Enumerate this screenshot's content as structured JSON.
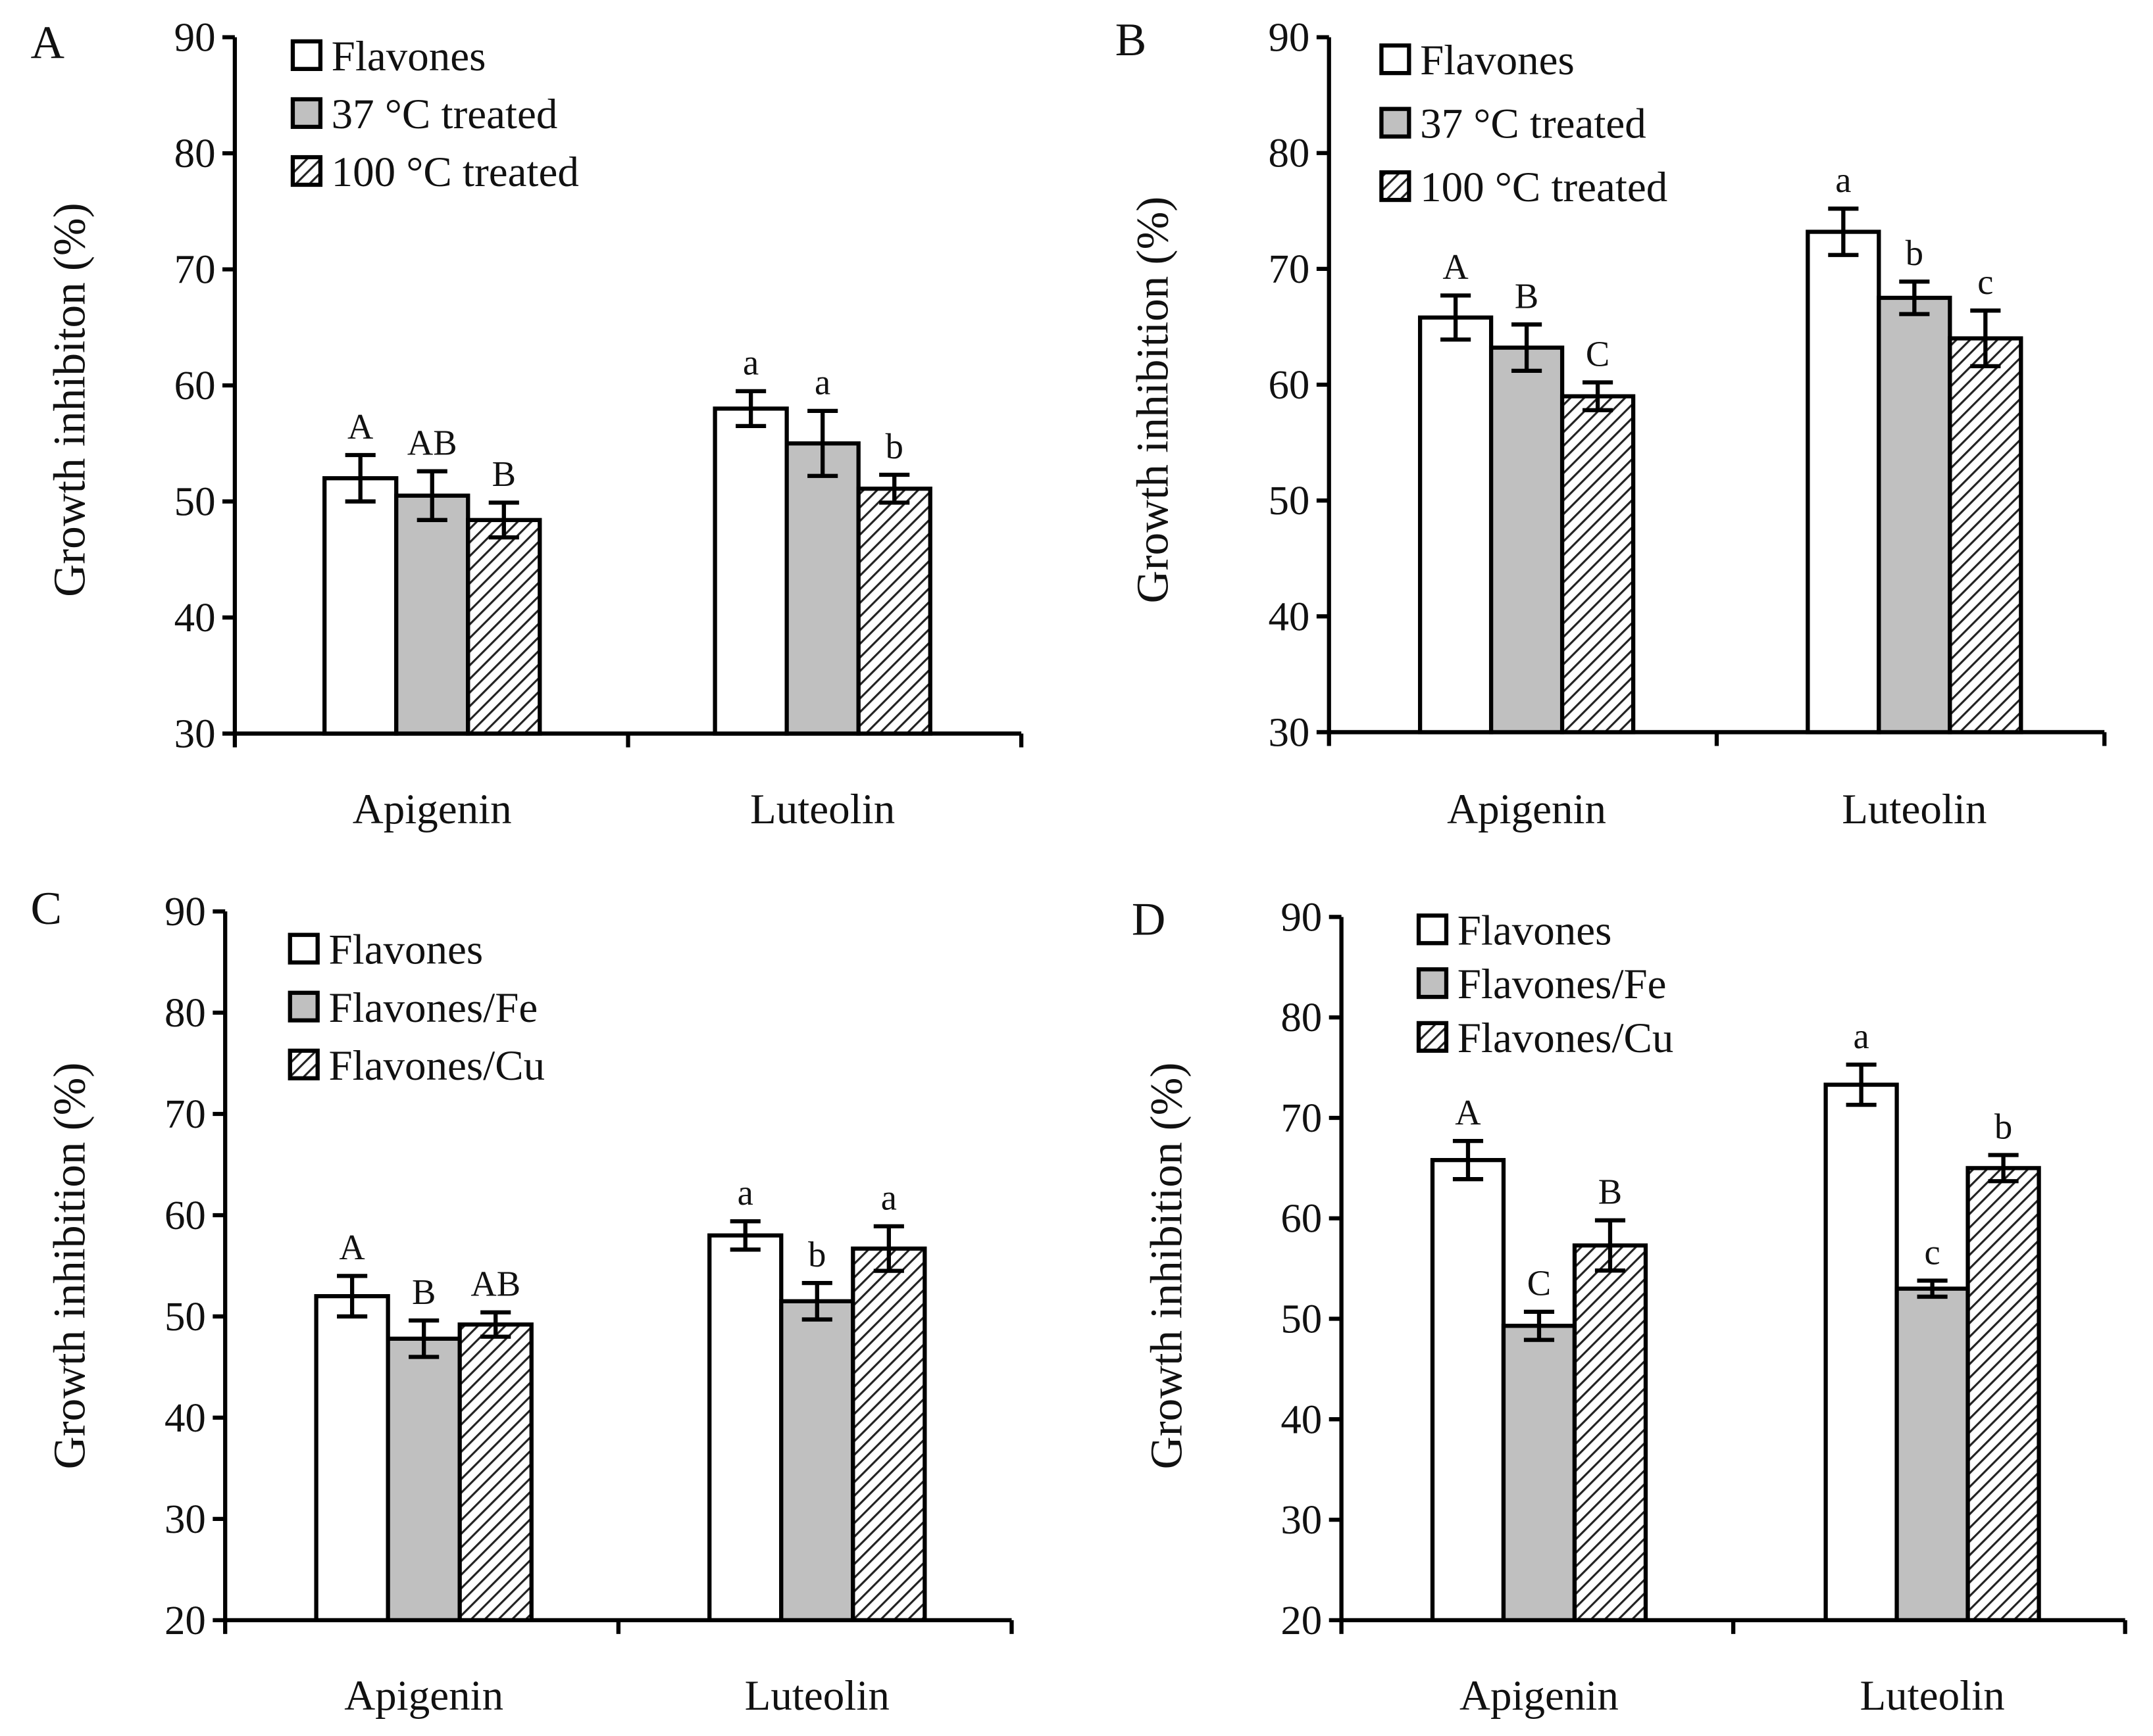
{
  "chart_data": [
    {
      "type": "bar",
      "panel_label": "A",
      "ylabel": "Growth inhibiton (%)",
      "xlabel": "",
      "ylim": [
        30,
        90
      ],
      "yticks": [
        "30",
        "40",
        "50",
        "60",
        "70",
        "80",
        "90"
      ],
      "categories": [
        "Apigenin",
        "Luteolin"
      ],
      "legend_position": "top-left",
      "series": [
        {
          "name": "Flavones",
          "fill": "white",
          "values": [
            52.0,
            58.0
          ],
          "errors": [
            2.0,
            1.5
          ],
          "letters": [
            "A",
            "a"
          ]
        },
        {
          "name": "37 °C treated",
          "fill": "gray",
          "values": [
            50.5,
            55.0
          ],
          "errors": [
            2.1,
            2.8
          ],
          "letters": [
            "AB",
            "a"
          ]
        },
        {
          "name": "100 °C treated",
          "fill": "hatch",
          "values": [
            48.4,
            51.1
          ],
          "errors": [
            1.5,
            1.2
          ],
          "letters": [
            "B",
            "b"
          ]
        }
      ]
    },
    {
      "type": "bar",
      "panel_label": "B",
      "ylabel": "Growth inhibition (%)",
      "xlabel": "",
      "ylim": [
        30,
        90
      ],
      "yticks": [
        "30",
        "40",
        "50",
        "60",
        "70",
        "80",
        "90"
      ],
      "categories": [
        "Apigenin",
        "Luteolin"
      ],
      "legend_position": "top-left",
      "series": [
        {
          "name": "Flavones",
          "fill": "white",
          "values": [
            65.8,
            73.2
          ],
          "errors": [
            1.9,
            2.0
          ],
          "letters": [
            "A",
            "a"
          ]
        },
        {
          "name": "37 °C treated",
          "fill": "gray",
          "values": [
            63.2,
            67.5
          ],
          "errors": [
            2.0,
            1.4
          ],
          "letters": [
            "B",
            "b"
          ]
        },
        {
          "name": "100 °C treated",
          "fill": "hatch",
          "values": [
            59.0,
            64.0
          ],
          "errors": [
            1.2,
            2.4
          ],
          "letters": [
            "C",
            "c"
          ]
        }
      ]
    },
    {
      "type": "bar",
      "panel_label": "C",
      "ylabel": "Growth inhibition (%)",
      "xlabel": "",
      "ylim": [
        20,
        90
      ],
      "yticks": [
        "20",
        "30",
        "40",
        "50",
        "60",
        "70",
        "80",
        "90"
      ],
      "categories": [
        "Apigenin",
        "Luteolin"
      ],
      "legend_position": "top-left",
      "series": [
        {
          "name": "Flavones",
          "fill": "white",
          "values": [
            52.0,
            58.0
          ],
          "errors": [
            2.0,
            1.4
          ],
          "letters": [
            "A",
            "a"
          ]
        },
        {
          "name": "Flavones/Fe",
          "fill": "gray",
          "values": [
            47.8,
            51.5
          ],
          "errors": [
            1.8,
            1.8
          ],
          "letters": [
            "B",
            "b"
          ]
        },
        {
          "name": "Flavones/Cu",
          "fill": "hatch",
          "values": [
            49.2,
            56.7
          ],
          "errors": [
            1.2,
            2.2
          ],
          "letters": [
            "AB",
            "a"
          ]
        }
      ]
    },
    {
      "type": "bar",
      "panel_label": "D",
      "ylabel": "Growth inhibition (%)",
      "xlabel": "",
      "ylim": [
        20,
        90
      ],
      "yticks": [
        "20",
        "30",
        "40",
        "50",
        "60",
        "70",
        "80",
        "90"
      ],
      "categories": [
        "Apigenin",
        "Luteolin"
      ],
      "legend_position": "top-left",
      "series": [
        {
          "name": "Flavones",
          "fill": "white",
          "values": [
            65.8,
            73.3
          ],
          "errors": [
            1.9,
            2.0
          ],
          "letters": [
            "A",
            "a"
          ]
        },
        {
          "name": "Flavones/Fe",
          "fill": "gray",
          "values": [
            49.3,
            53.0
          ],
          "errors": [
            1.4,
            0.8
          ],
          "letters": [
            "C",
            "c"
          ]
        },
        {
          "name": "Flavones/Cu",
          "fill": "hatch",
          "values": [
            57.3,
            65.0
          ],
          "errors": [
            2.5,
            1.3
          ],
          "letters": [
            "B",
            "b"
          ]
        }
      ]
    }
  ]
}
